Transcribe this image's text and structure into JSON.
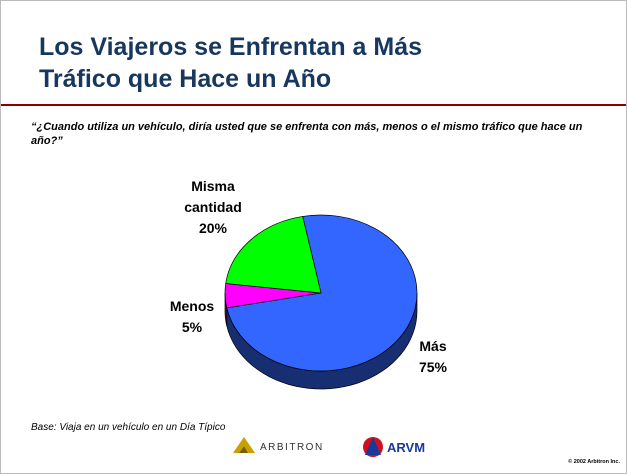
{
  "chart_data": {
    "type": "pie",
    "title": [
      "Los Viajeros se Enfrentan a Más",
      "Tráfico que Hace un Año"
    ],
    "subtitle": "“¿Cuando utiliza un vehículo, diría usted que se enfrenta con más, menos o el mismo tráfico que hace un año?”",
    "categories": [
      "Más",
      "Menos",
      "Misma cantidad"
    ],
    "values": [
      75,
      5,
      20
    ],
    "value_labels": [
      "75%",
      "5%",
      "20%"
    ],
    "colors": [
      "#3366ff",
      "#ff00ff",
      "#00ff00"
    ],
    "footnote": "Base: Viaja en un vehículo en un Día Típico"
  },
  "footer": {
    "logo1": "ARBITRON",
    "logo2": "ARVM",
    "copyright": "© 2002 Arbitron Inc."
  }
}
